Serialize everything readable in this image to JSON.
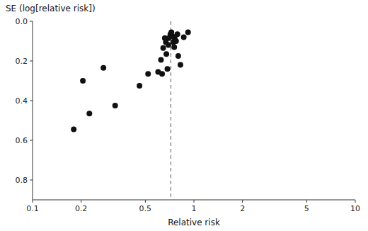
{
  "chart_data": {
    "type": "scatter",
    "xlabel": "Relative risk",
    "ylabel": "SE (log[relative risk])",
    "x": [
      0.18,
      0.205,
      0.225,
      0.275,
      0.325,
      0.46,
      0.52,
      0.6,
      0.625,
      0.635,
      0.645,
      0.66,
      0.67,
      0.675,
      0.685,
      0.695,
      0.7,
      0.715,
      0.725,
      0.735,
      0.745,
      0.755,
      0.76,
      0.775,
      0.79,
      0.8,
      0.825,
      0.865,
      0.92
    ],
    "values": [
      0.545,
      0.3,
      0.465,
      0.235,
      0.425,
      0.325,
      0.265,
      0.255,
      0.195,
      0.265,
      0.135,
      0.085,
      0.105,
      0.165,
      0.24,
      0.12,
      0.085,
      0.065,
      0.055,
      0.075,
      0.105,
      0.13,
      0.085,
      0.1,
      0.065,
      0.175,
      0.22,
      0.08,
      0.055
    ],
    "color": "#111111",
    "marker": "circle",
    "log": "x",
    "grid": false,
    "xlim": [
      0.1,
      10
    ],
    "xticks": [
      0.1,
      0.2,
      0.5,
      1,
      2,
      5,
      10
    ],
    "ylim": [
      0.9,
      0.0
    ],
    "yticks": [
      {
        "value": 0.0,
        "label": "0.0"
      },
      0.2,
      0.4,
      0.6,
      0.8
    ],
    "reference_line": {
      "x": 0.72,
      "color": "#555555",
      "line_style": "dashed"
    }
  }
}
